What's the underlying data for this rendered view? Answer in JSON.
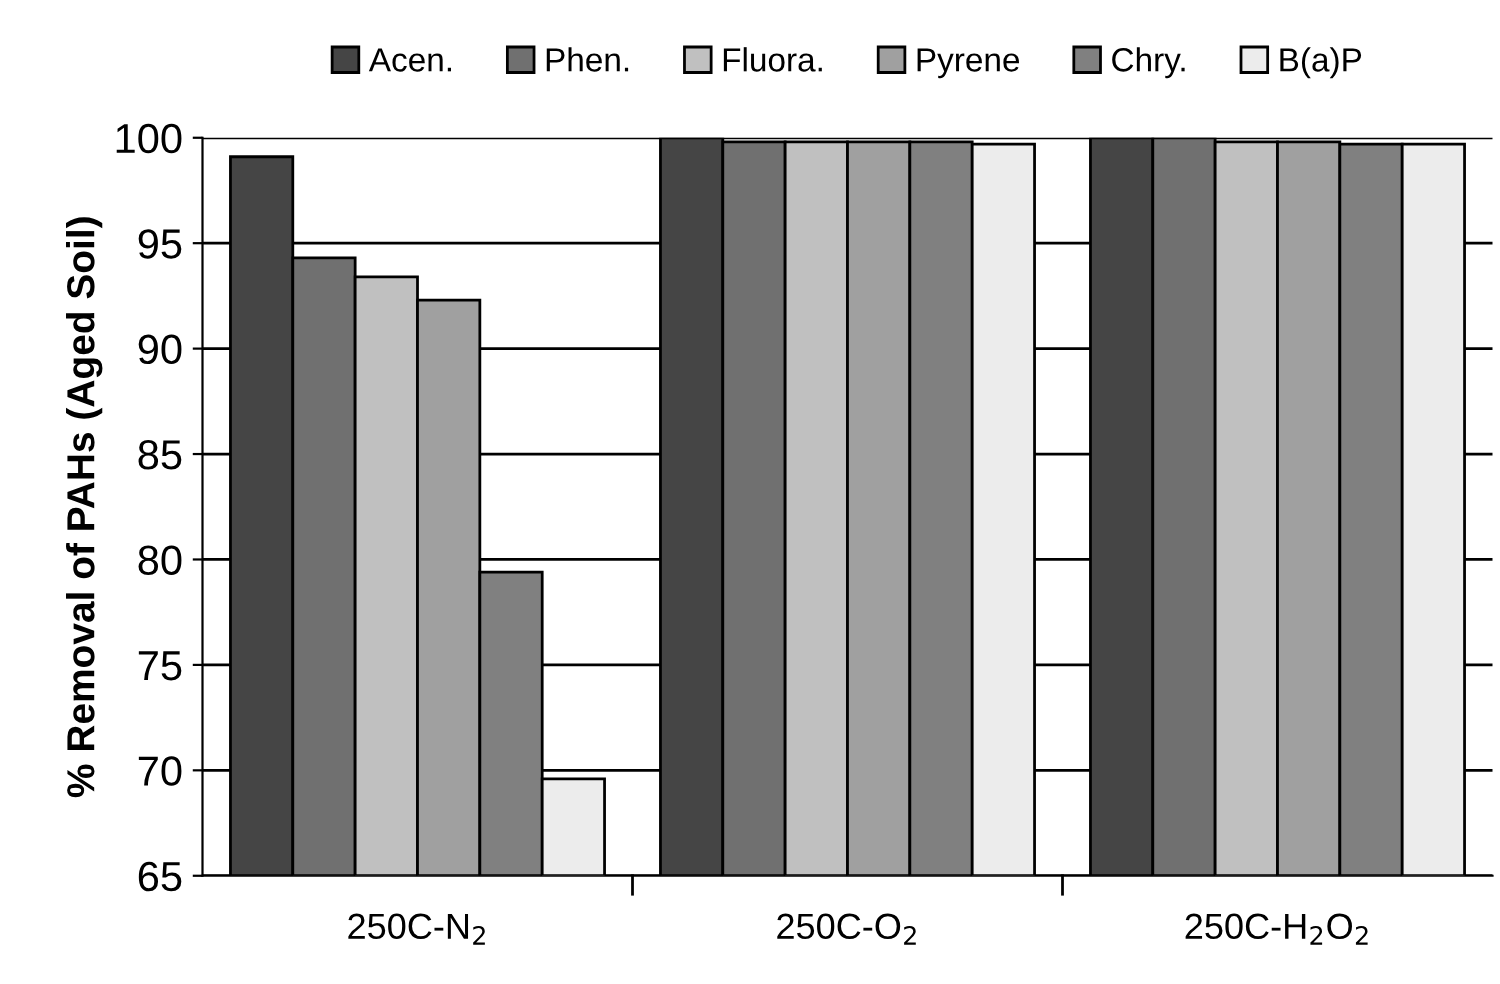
{
  "chart_data": {
    "type": "bar",
    "ylabel": "% Removal of PAHs (Aged Soil)",
    "categories": [
      "250C-N$_{2}$",
      "250C-O$_{2}$",
      "250C-H$_{2}$O$_{2}$"
    ],
    "series": [
      {
        "name": "Acen.",
        "color": "#454545",
        "values": [
          99.1,
          100,
          100
        ]
      },
      {
        "name": "Phen.",
        "color": "#707070",
        "values": [
          94.3,
          99.8,
          100
        ]
      },
      {
        "name": "Fluora.",
        "color": "#c0c0c0",
        "values": [
          93.4,
          99.8,
          99.8
        ]
      },
      {
        "name": "Pyrene",
        "color": "#a0a0a0",
        "values": [
          92.3,
          99.8,
          99.8
        ]
      },
      {
        "name": "Chry.",
        "color": "#808080",
        "values": [
          79.4,
          99.8,
          99.7
        ]
      },
      {
        "name": "B(a)P",
        "color": "#ececec",
        "values": [
          69.6,
          99.7,
          99.7
        ]
      }
    ],
    "ylim": [
      65,
      100
    ],
    "yticks": [
      65,
      70,
      75,
      80,
      85,
      90,
      95,
      100
    ],
    "grid": "y",
    "legend": "top"
  }
}
